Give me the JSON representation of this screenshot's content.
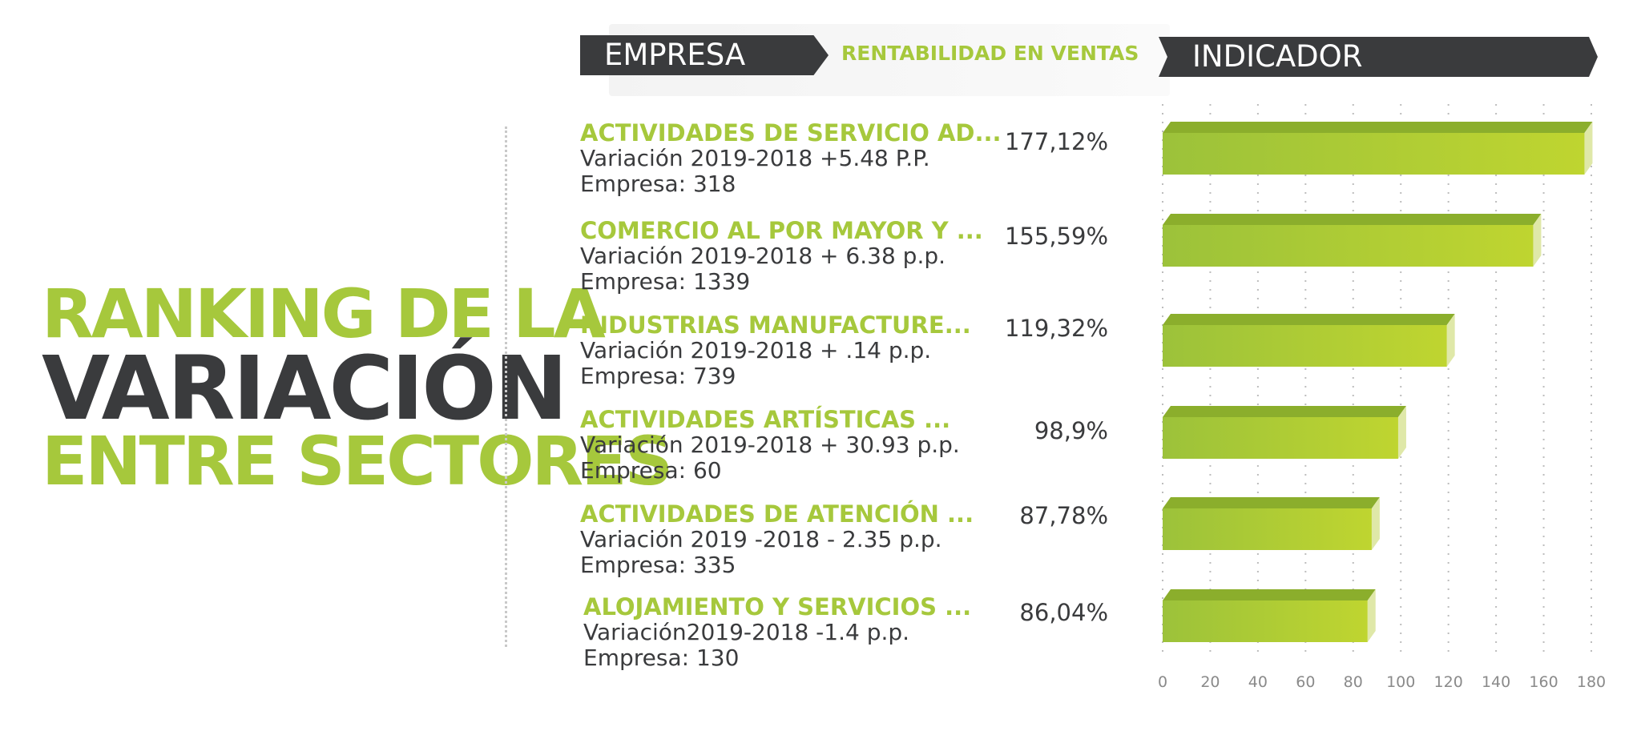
{
  "title": {
    "line1": "RANKING DE LA",
    "line2": "VARIACIÓN",
    "line3": "ENTRE SECTORES"
  },
  "header": {
    "empresa": "EMPRESA",
    "rentabilidad": "RENTABILIDAD EN VENTAS",
    "indicador": "INDICADOR"
  },
  "colors": {
    "green": "#a6c83c",
    "dark": "#3a3b3d"
  },
  "rows": [
    {
      "name": "ACTIVIDADES DE SERVICIO AD...",
      "variation": "Variación 2019-2018 +5.48 P.P.",
      "company": "Empresa: 318",
      "percent": "177,12%"
    },
    {
      "name": "COMERCIO AL POR MAYOR Y ...",
      "variation": "Variación 2019-2018 + 6.38 p.p.",
      "company": "Empresa: 1339",
      "percent": "155,59%"
    },
    {
      "name": "INDUSTRIAS MANUFACTURE...",
      "variation": "Variación 2019-2018 + .14 p.p.",
      "company": "Empresa: 739",
      "percent": "119,32%"
    },
    {
      "name": "ACTIVIDADES ARTÍSTICAS ...",
      "variation": "Variación 2019-2018 + 30.93 p.p.",
      "company": "Empresa: 60",
      "percent": "98,9%"
    },
    {
      "name": "ACTIVIDADES DE ATENCIÓN ...",
      "variation": "Variación 2019 -2018 - 2.35 p.p.",
      "company": "Empresa: 335",
      "percent": "87,78%"
    },
    {
      "name": "ALOJAMIENTO Y SERVICIOS ...",
      "variation": "Variación2019-2018 -1.4 p.p.",
      "company": "Empresa: 130",
      "percent": "86,04%"
    }
  ],
  "chart_data": {
    "type": "bar",
    "orientation": "horizontal",
    "categories": [
      "ACTIVIDADES DE SERVICIO AD...",
      "COMERCIO AL POR MAYOR Y ...",
      "INDUSTRIAS MANUFACTURE...",
      "ACTIVIDADES ARTÍSTICAS ...",
      "ACTIVIDADES DE ATENCIÓN ...",
      "ALOJAMIENTO Y SERVICIOS ..."
    ],
    "values": [
      177.12,
      155.59,
      119.32,
      98.9,
      87.78,
      86.04
    ],
    "xlim": [
      0,
      180
    ],
    "xticks": [
      0,
      20,
      40,
      60,
      80,
      100,
      120,
      140,
      160,
      180
    ],
    "xtick_labels": [
      "0",
      "20",
      "40",
      "60",
      "80",
      "100",
      "120",
      "140",
      "160",
      "180"
    ],
    "grid": true,
    "bar_color": "#a6c83c"
  }
}
